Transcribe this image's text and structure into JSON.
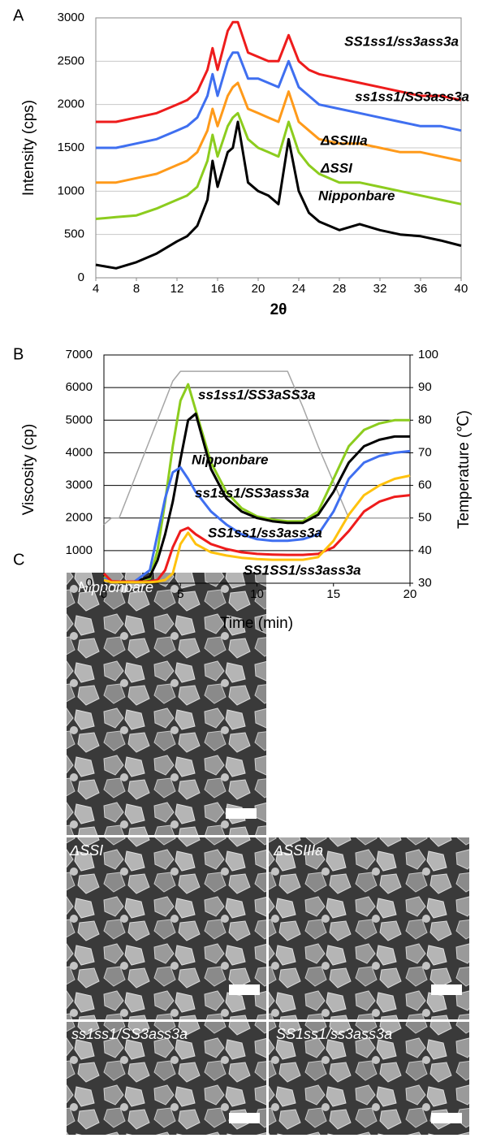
{
  "chart_data": [
    {
      "type": "line",
      "panel_label": "A",
      "xlabel": "2θ",
      "ylabel": "Intensity (cps)",
      "x": [
        4,
        6,
        8,
        10,
        12,
        13,
        14,
        15,
        15.5,
        16,
        17,
        17.5,
        18,
        19,
        20,
        21,
        22,
        23,
        24,
        25,
        26,
        28,
        30,
        32,
        34,
        36,
        38,
        40
      ],
      "series": [
        {
          "name": "SS1ss1/ss3ass3a",
          "color": "#ee1c1c",
          "values": [
            1800,
            1800,
            1850,
            1900,
            2000,
            2050,
            2150,
            2400,
            2650,
            2400,
            2850,
            2950,
            2950,
            2600,
            2550,
            2500,
            2500,
            2800,
            2500,
            2400,
            2350,
            2300,
            2250,
            2200,
            2150,
            2100,
            2100,
            2050
          ]
        },
        {
          "name": "ss1ss1/SS3ass3a",
          "color": "#3f6ff0",
          "values": [
            1500,
            1500,
            1550,
            1600,
            1700,
            1750,
            1850,
            2100,
            2350,
            2100,
            2500,
            2600,
            2600,
            2300,
            2300,
            2250,
            2200,
            2500,
            2200,
            2100,
            2000,
            1950,
            1900,
            1850,
            1800,
            1750,
            1750,
            1700
          ]
        },
        {
          "name": "ΔSSIIIa",
          "color": "#ff9a1a",
          "values": [
            1100,
            1100,
            1150,
            1200,
            1300,
            1350,
            1450,
            1700,
            1950,
            1750,
            2100,
            2200,
            2250,
            1950,
            1900,
            1850,
            1800,
            2150,
            1800,
            1700,
            1600,
            1550,
            1550,
            1500,
            1450,
            1450,
            1400,
            1350
          ]
        },
        {
          "name": "ΔSSI",
          "color": "#8ccc1e",
          "values": [
            680,
            700,
            720,
            800,
            900,
            950,
            1050,
            1350,
            1650,
            1400,
            1750,
            1850,
            1900,
            1600,
            1500,
            1450,
            1400,
            1800,
            1450,
            1300,
            1200,
            1100,
            1100,
            1050,
            1000,
            950,
            900,
            850
          ]
        },
        {
          "name": "Nipponbare",
          "color": "#000000",
          "values": [
            150,
            110,
            180,
            280,
            420,
            480,
            600,
            900,
            1350,
            1050,
            1450,
            1500,
            1800,
            1100,
            1000,
            950,
            850,
            1600,
            1000,
            750,
            650,
            550,
            620,
            550,
            500,
            480,
            430,
            370
          ]
        }
      ],
      "xlim": [
        4,
        40
      ],
      "xticks": [
        4,
        8,
        12,
        16,
        20,
        24,
        28,
        32,
        36,
        40
      ],
      "ylim": [
        0,
        3000
      ],
      "yticks": [
        0,
        500,
        1000,
        1500,
        2000,
        2500,
        3000
      ],
      "grid": true
    },
    {
      "type": "line",
      "panel_label": "B",
      "xlabel": "Time (min)",
      "ylabel": "Viscosity (cp)",
      "y2label": "Temperature (℃)",
      "x": [
        0,
        0.5,
        1,
        2,
        3,
        3.5,
        4,
        4.5,
        5,
        5.5,
        6,
        7,
        8,
        9,
        10,
        11,
        12,
        13,
        14,
        15,
        16,
        17,
        18,
        19,
        20
      ],
      "series": [
        {
          "color": "#a6a6a6",
          "axis": "y2",
          "values": [
            48,
            50,
            50,
            62,
            74,
            80,
            86,
            92,
            95,
            95,
            95,
            95,
            95,
            95,
            95,
            95,
            95,
            84,
            72,
            61,
            50,
            50,
            50,
            50,
            50
          ]
        },
        {
          "name": "ss1ss1/SS3aSS3a",
          "color": "#8ccc1e",
          "values": [
            200,
            50,
            50,
            50,
            150,
            1000,
            2500,
            4200,
            5600,
            6100,
            5300,
            3700,
            2800,
            2300,
            2050,
            1950,
            1900,
            1900,
            2200,
            3200,
            4200,
            4700,
            4900,
            5000,
            5000
          ]
        },
        {
          "name": "Nipponbare",
          "color": "#000000",
          "values": [
            100,
            50,
            50,
            50,
            200,
            700,
            1500,
            2500,
            3800,
            5000,
            5200,
            3500,
            2600,
            2200,
            2000,
            1900,
            1850,
            1850,
            2100,
            2800,
            3700,
            4200,
            4400,
            4500,
            4500
          ]
        },
        {
          "name": "ss1ss1/SS3ass3a",
          "color": "#3f6ff0",
          "values": [
            150,
            50,
            50,
            50,
            400,
            1500,
            2600,
            3400,
            3550,
            3200,
            2800,
            2200,
            1800,
            1500,
            1350,
            1300,
            1300,
            1350,
            1500,
            2200,
            3200,
            3700,
            3900,
            4000,
            4050
          ]
        },
        {
          "name": "SS1ss1/ss3ass3a",
          "color": "#ee1c1c",
          "values": [
            300,
            60,
            50,
            50,
            50,
            100,
            400,
            1100,
            1600,
            1700,
            1500,
            1200,
            1050,
            950,
            900,
            880,
            870,
            870,
            900,
            1100,
            1600,
            2200,
            2500,
            2650,
            2700
          ]
        },
        {
          "name": "SS1SS1/ss3ass3a",
          "color": "#ffc20e",
          "values": [
            100,
            30,
            30,
            30,
            30,
            50,
            100,
            300,
            1200,
            1550,
            1200,
            950,
            850,
            780,
            740,
            720,
            720,
            720,
            800,
            1300,
            2100,
            2700,
            3000,
            3200,
            3300
          ]
        }
      ],
      "xlim": [
        0,
        20
      ],
      "xticks": [
        0,
        5,
        10,
        15,
        20
      ],
      "ylim": [
        0,
        7000
      ],
      "yticks": [
        0,
        1000,
        2000,
        3000,
        4000,
        5000,
        6000,
        7000
      ],
      "y2lim": [
        30,
        100
      ],
      "y2ticks": [
        30,
        40,
        50,
        60,
        70,
        80,
        90,
        100
      ],
      "grid": true
    }
  ],
  "figure_c": {
    "panel_label": "C",
    "images": [
      {
        "label": "Nipponbare"
      },
      {
        "label": "ΔSSI"
      },
      {
        "label": "ΔSSIIIa"
      },
      {
        "label": "ss1ss1/SS3ass3a"
      },
      {
        "label": "SS1ss1/ss3ass3a"
      }
    ]
  }
}
